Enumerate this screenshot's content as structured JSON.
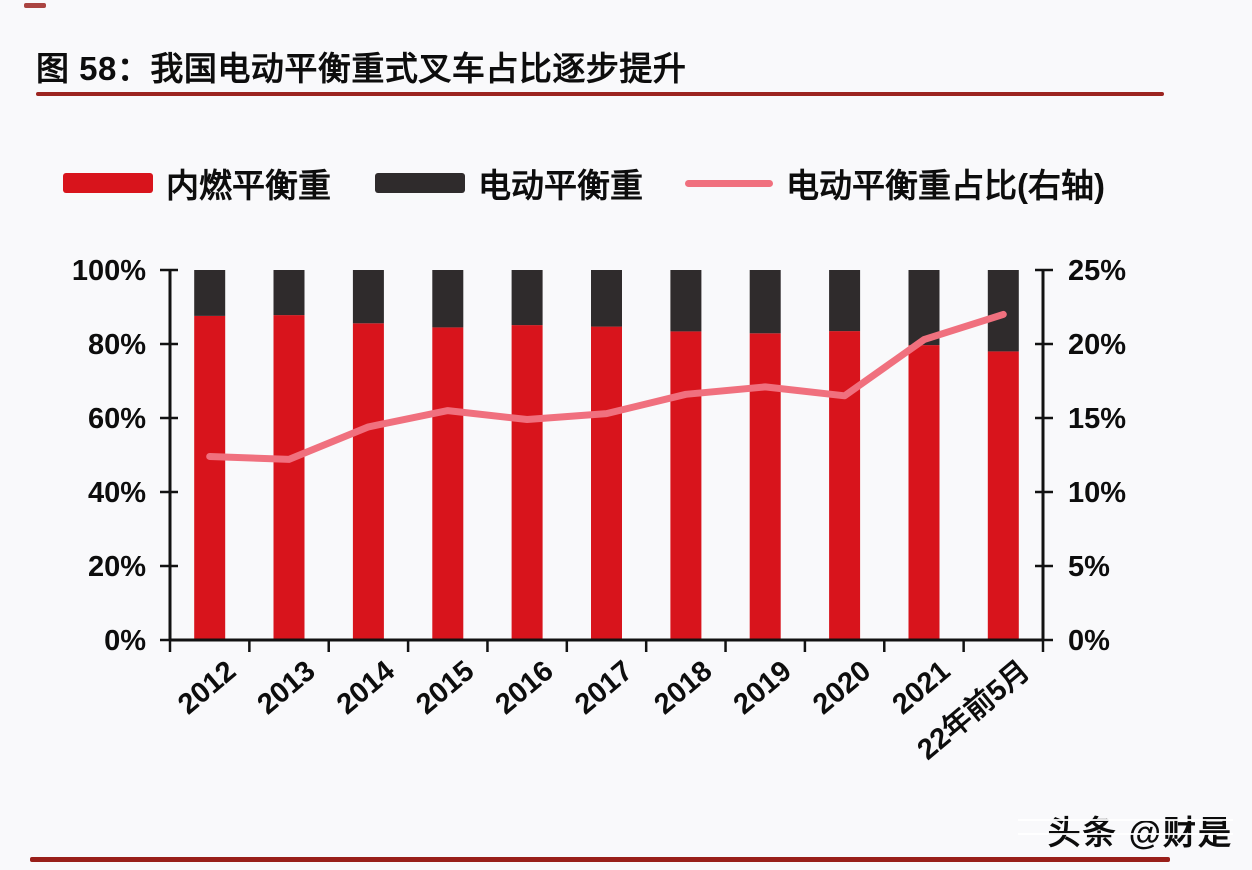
{
  "page": {
    "title": "图 58：我国电动平衡重式叉车占比逐步提升",
    "watermark": "头条 @财是",
    "colors": {
      "bar_red": "#D8141C",
      "bar_black": "#2F2B2C",
      "line_pink": "#F0707E",
      "rule_red": "#9C2420",
      "rule_red_dark": "#991F1A",
      "axis_black": "#121212"
    }
  },
  "chart_data": {
    "type": "bar",
    "subtype": "stacked-bars-with-line-overlay",
    "title": "图 58：我国电动平衡重式叉车占比逐步提升",
    "categories": [
      "2012",
      "2013",
      "2014",
      "2015",
      "2016",
      "2017",
      "2018",
      "2019",
      "2020",
      "2021",
      "22年前5月"
    ],
    "series": [
      {
        "name": "内燃平衡重",
        "type": "bar",
        "axis": "left",
        "color": "#D8141C",
        "values": [
          87.6,
          87.8,
          85.6,
          84.5,
          85.1,
          84.7,
          83.4,
          82.9,
          83.5,
          79.7,
          78.0
        ]
      },
      {
        "name": "电动平衡重",
        "type": "bar",
        "axis": "left",
        "color": "#2F2B2C",
        "values": [
          12.4,
          12.2,
          14.4,
          15.5,
          14.9,
          15.3,
          16.6,
          17.1,
          16.5,
          20.3,
          22.0
        ]
      },
      {
        "name": "电动平衡重占比(右轴)",
        "type": "line",
        "axis": "right",
        "color": "#F0707E",
        "values": [
          12.4,
          12.2,
          14.4,
          15.5,
          14.9,
          15.3,
          16.6,
          17.1,
          16.5,
          20.3,
          22.0
        ]
      }
    ],
    "left_axis": {
      "min": 0,
      "max": 100,
      "step": 20,
      "tick_labels": [
        "0%",
        "20%",
        "40%",
        "60%",
        "80%",
        "100%"
      ]
    },
    "right_axis": {
      "min": 0,
      "max": 25,
      "step": 5,
      "tick_labels": [
        "0%",
        "5%",
        "10%",
        "15%",
        "20%",
        "25%"
      ]
    },
    "grid": false,
    "legend_position": "top",
    "x_label_rotation_deg": -40
  }
}
